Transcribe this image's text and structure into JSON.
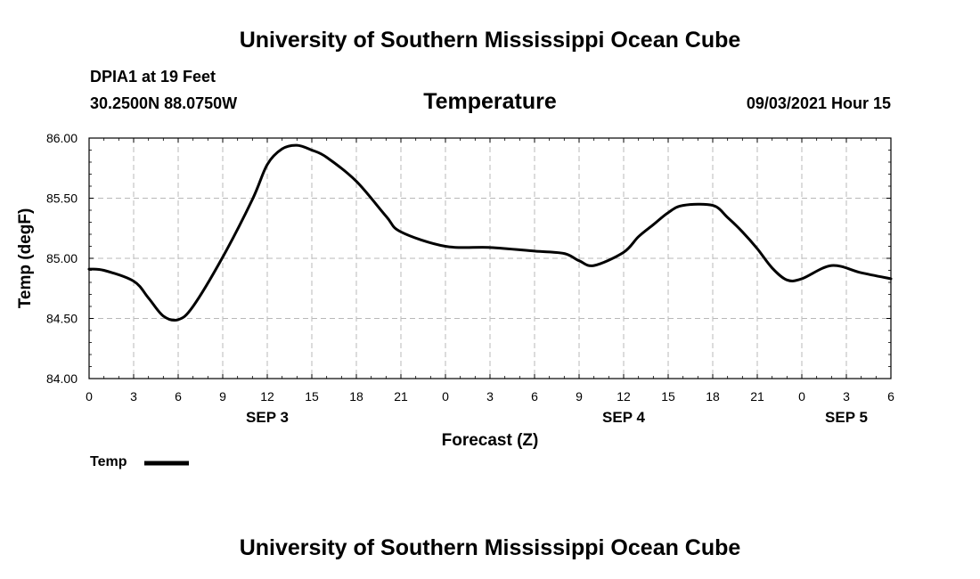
{
  "header": {
    "title_top": "University of Southern Mississippi Ocean Cube",
    "station": "DPIA1 at 19 Feet",
    "coords": "30.2500N  88.0750W",
    "subtitle": "Temperature",
    "datetime": "09/03/2021 Hour 15",
    "title_bottom": "University of Southern Mississippi Ocean Cube"
  },
  "legend": {
    "label": "Temp"
  },
  "chart_data": {
    "type": "line",
    "title": "Temperature",
    "xlabel": "Forecast (Z)",
    "ylabel": "Temp (degF)",
    "ylim": [
      84.0,
      86.0
    ],
    "xlim": [
      0,
      54
    ],
    "grid": true,
    "legend_position": "bottom-left",
    "y_ticks": [
      "84.00",
      "84.50",
      "85.00",
      "85.50",
      "86.00"
    ],
    "x_ticks": [
      "0",
      "3",
      "6",
      "9",
      "12",
      "15",
      "18",
      "21",
      "0",
      "3",
      "6",
      "9",
      "12",
      "15",
      "18",
      "21",
      "0",
      "3",
      "6"
    ],
    "day_labels": [
      {
        "text": "SEP 3",
        "hour": 12
      },
      {
        "text": "SEP 4",
        "hour": 36
      },
      {
        "text": "SEP 5",
        "hour": 51
      }
    ],
    "series": [
      {
        "name": "Temp",
        "color": "#000000",
        "x": [
          0,
          1,
          3,
          4,
          5,
          6,
          7,
          9,
          11,
          12,
          13,
          14,
          15,
          16,
          18,
          20,
          21,
          24,
          27,
          30,
          32,
          33,
          34,
          36,
          37,
          38,
          39,
          40,
          42,
          43,
          44,
          45,
          46,
          47,
          48,
          50,
          52,
          54
        ],
        "values": [
          84.91,
          84.9,
          84.81,
          84.67,
          84.52,
          84.49,
          84.6,
          85.01,
          85.49,
          85.78,
          85.91,
          85.94,
          85.9,
          85.84,
          85.64,
          85.35,
          85.22,
          85.1,
          85.09,
          85.06,
          85.04,
          84.98,
          84.94,
          85.05,
          85.18,
          85.28,
          85.38,
          85.44,
          85.44,
          85.34,
          85.22,
          85.08,
          84.92,
          84.82,
          84.83,
          84.94,
          84.88,
          84.83
        ]
      }
    ]
  }
}
